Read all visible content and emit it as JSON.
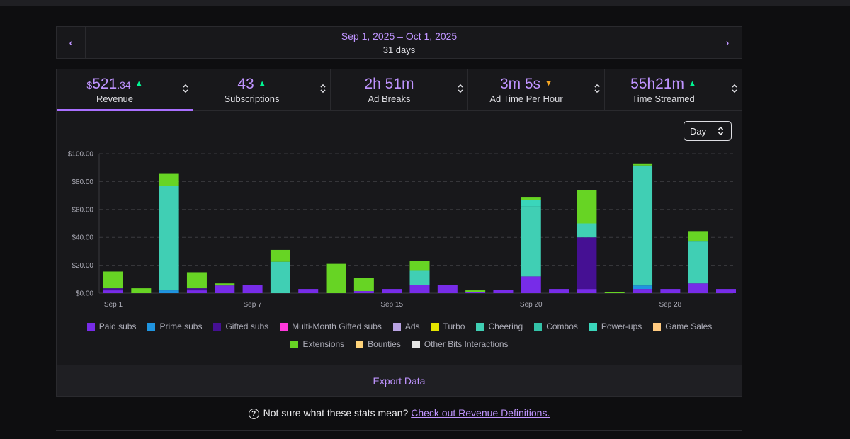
{
  "date_range": {
    "range": "Sep 1, 2025 – Oct 1, 2025",
    "days": "31 days",
    "prev_icon": "chevron-left",
    "next_icon": "chevron-right"
  },
  "tabs": [
    {
      "currency": "$",
      "main": "521",
      "cents": ".34",
      "trend": "up",
      "label": "Revenue",
      "active": true
    },
    {
      "main": "43",
      "trend": "up",
      "label": "Subscriptions"
    },
    {
      "main": "2h 51m",
      "label": "Ad Breaks"
    },
    {
      "main": "3m 5s",
      "trend": "down",
      "label": "Ad Time Per Hour"
    },
    {
      "main": "55h21m",
      "trend": "up",
      "label": "Time Streamed"
    }
  ],
  "granularity": {
    "selected": "Day"
  },
  "colors": {
    "accent": "#a970ff",
    "trend_up": "#00f593",
    "trend_down": "#f5a623"
  },
  "legend": [
    {
      "label": "Paid subs",
      "color": "#772ce8"
    },
    {
      "label": "Prime subs",
      "color": "#1f94e0"
    },
    {
      "label": "Gifted subs",
      "color": "#451093"
    },
    {
      "label": "Multi-Month Gifted subs",
      "color": "#ff38db"
    },
    {
      "label": "Ads",
      "color": "#b9a3e3"
    },
    {
      "label": "Turbo",
      "color": "#e4e400"
    },
    {
      "label": "Cheering",
      "color": "#40cfb4"
    },
    {
      "label": "Combos",
      "color": "#33c2a8"
    },
    {
      "label": "Power-ups",
      "color": "#3ad6bb"
    },
    {
      "label": "Game Sales",
      "color": "#ffca80"
    },
    {
      "label": "Extensions",
      "color": "#67d424"
    },
    {
      "label": "Bounties",
      "color": "#ffd37a"
    },
    {
      "label": "Other Bits Interactions",
      "color": "#e5e5e5"
    }
  ],
  "chart_data": {
    "type": "bar",
    "stacked": true,
    "title": "",
    "xlabel": "",
    "ylabel": "",
    "ylim": [
      0,
      100
    ],
    "yticks": [
      "$0.00",
      "$20.00",
      "$40.00",
      "$60.00",
      "$80.00",
      "$100.00"
    ],
    "xtick_labels": [
      {
        "index": 0,
        "label": "Sep 1"
      },
      {
        "index": 5,
        "label": "Sep 7"
      },
      {
        "index": 10,
        "label": "Sep 15"
      },
      {
        "index": 15,
        "label": "Sep 20"
      },
      {
        "index": 20,
        "label": "Sep 28"
      }
    ],
    "categories": [
      "1",
      "2",
      "3",
      "4",
      "5",
      "6",
      "7",
      "8",
      "9",
      "10",
      "11",
      "12",
      "13",
      "14",
      "15",
      "16",
      "17",
      "18",
      "19",
      "20",
      "21",
      "22",
      "23"
    ],
    "series": [
      {
        "name": "Paid subs",
        "color": "#772ce8",
        "values": [
          2,
          0,
          0,
          2,
          5.5,
          6,
          0,
          3,
          0,
          1.5,
          3,
          6,
          6,
          1,
          2.5,
          12,
          3,
          3,
          0,
          3,
          3,
          7,
          3
        ]
      },
      {
        "name": "Prime subs",
        "color": "#1f94e0",
        "values": [
          0,
          0,
          2,
          0,
          0,
          0,
          0,
          0,
          0,
          0,
          0,
          0,
          0,
          0,
          0,
          0,
          0,
          0,
          0,
          2.5,
          0,
          0,
          0
        ]
      },
      {
        "name": "Gifted subs",
        "color": "#451093",
        "values": [
          1.5,
          0,
          0,
          1.5,
          0,
          0,
          0,
          0,
          0,
          0,
          0,
          0,
          0,
          0,
          0,
          0,
          0,
          37,
          0,
          0,
          0,
          0,
          0
        ]
      },
      {
        "name": "Cheering",
        "color": "#40cfb4",
        "values": [
          0,
          0,
          75,
          0,
          0,
          0,
          22.5,
          0,
          0,
          0,
          0,
          10,
          0,
          0,
          0,
          50,
          0,
          10,
          0,
          86,
          0,
          30,
          0
        ]
      },
      {
        "name": "Power-ups",
        "color": "#3ad6bb",
        "values": [
          0,
          0,
          0,
          0,
          0,
          0,
          0,
          0,
          0,
          0,
          0,
          0,
          0,
          0,
          0,
          5,
          0,
          0,
          0,
          0,
          0,
          0,
          0
        ]
      },
      {
        "name": "Extensions",
        "color": "#67d424",
        "values": [
          12,
          3.5,
          8.5,
          11.5,
          1.5,
          0,
          8.5,
          0,
          21,
          9.5,
          0,
          7,
          0,
          1,
          0,
          2,
          0,
          24,
          0.8,
          1.5,
          0,
          7.5,
          0
        ]
      }
    ]
  },
  "export_label": "Export Data",
  "help": {
    "question": "Not sure what these stats mean?",
    "link": "Check out Revenue Definitions."
  }
}
